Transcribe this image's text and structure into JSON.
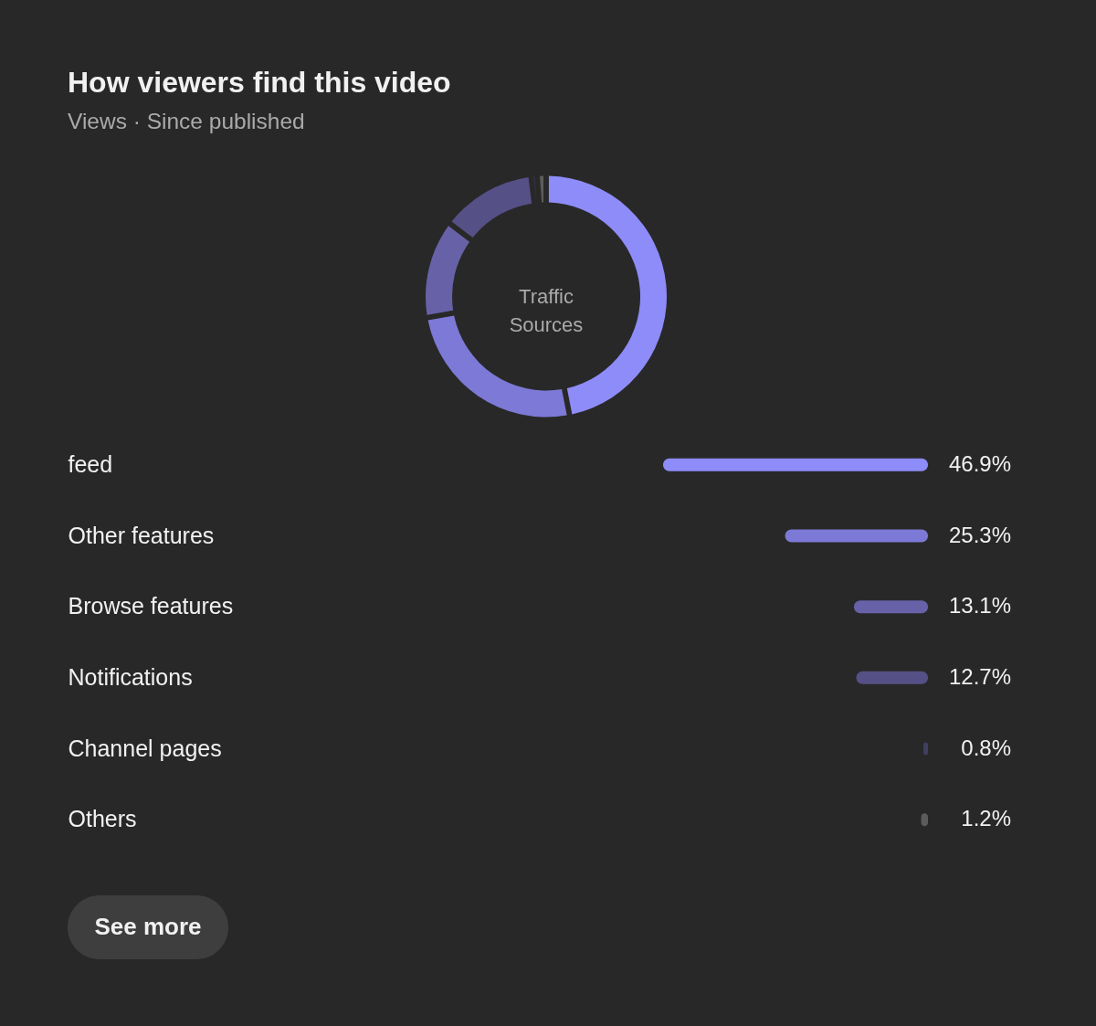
{
  "chart_data": [
    {
      "type": "donut",
      "title": "How viewers find this video",
      "subtitle": "Views · Since published",
      "annotations": [
        "Traffic Sources"
      ],
      "values": [
        46.9,
        25.3,
        13.1,
        12.7,
        0.8,
        1.2
      ],
      "colors": [
        "#8e8cf8",
        "#7d79d6",
        "#6762a8",
        "#555086",
        "#413e63",
        "#5c5c5c"
      ]
    },
    {
      "type": "bar",
      "orientation": "horizontal",
      "categories": [
        "feed",
        "Other features",
        "Browse features",
        "Notifications",
        "Channel pages",
        "Others"
      ],
      "values": [
        46.9,
        25.3,
        13.1,
        12.7,
        0.8,
        1.2
      ],
      "colors": [
        "#8e8cf8",
        "#7d79d6",
        "#6762a8",
        "#555086",
        "#413e63",
        "#5c5c5c"
      ],
      "value_labels": [
        "46.9%",
        "25.3%",
        "13.1%",
        "12.7%",
        "0.8%",
        "1.2%"
      ],
      "annotations": [
        "See more"
      ]
    }
  ]
}
